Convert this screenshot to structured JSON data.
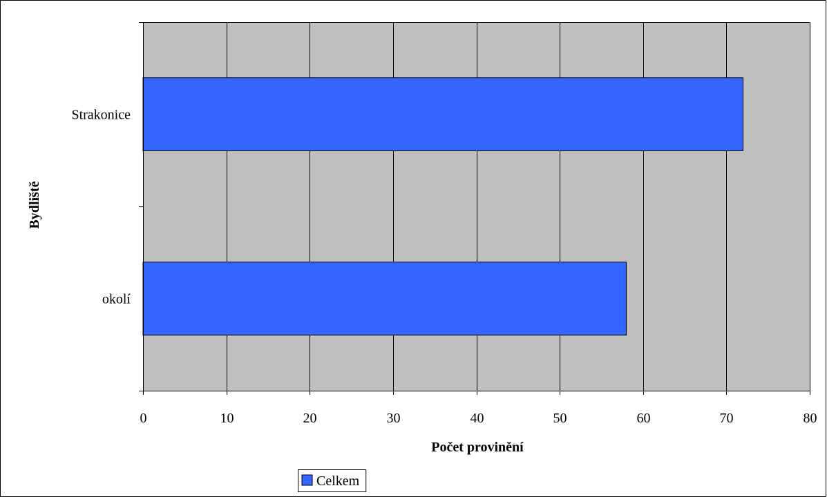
{
  "chart_data": {
    "type": "bar",
    "orientation": "horizontal",
    "title": "",
    "xlabel": "Počet provinění",
    "ylabel": "Bydliště",
    "categories": [
      "Strakonice",
      "okolí"
    ],
    "series": [
      {
        "name": "Celkem",
        "values": [
          72,
          58
        ]
      }
    ],
    "xlim": [
      0,
      80
    ],
    "xticks": [
      "0",
      "10",
      "20",
      "30",
      "40",
      "50",
      "60",
      "70",
      "80"
    ],
    "grid": true,
    "legend_position": "bottom",
    "colors": {
      "bar": "#3366FF",
      "plot_background": "#C0C0C0",
      "gridline": "#000000",
      "frame": "#000000"
    }
  }
}
